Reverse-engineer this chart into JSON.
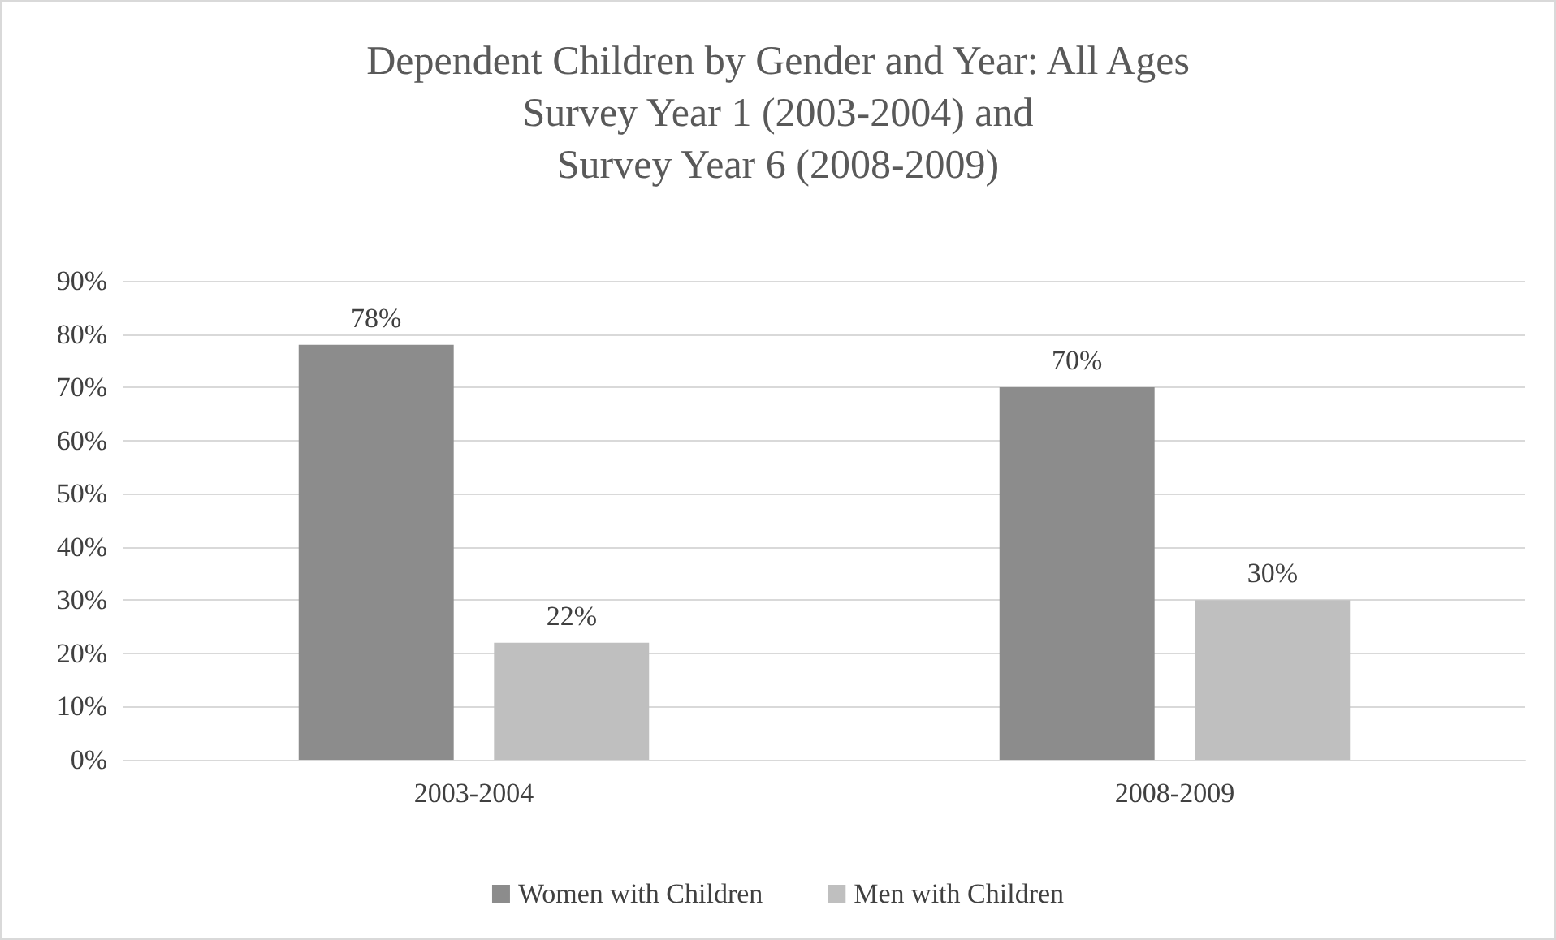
{
  "chart_data": {
    "type": "bar",
    "title": "Dependent Children by Gender and Year: All Ages\nSurvey Year 1 (2003-2004) and\nSurvey Year 6 (2008-2009)",
    "categories": [
      "2003-2004",
      "2008-2009"
    ],
    "series": [
      {
        "name": "Women with Children",
        "color": "#8c8c8c",
        "values": [
          78,
          70
        ],
        "value_labels": [
          "78%",
          "70%"
        ]
      },
      {
        "name": "Men with Children",
        "color": "#bfbfbf",
        "values": [
          22,
          30
        ],
        "value_labels": [
          "22%",
          "30%"
        ]
      }
    ],
    "ylim": [
      0,
      90
    ],
    "yticks": [
      {
        "value": 0,
        "label": "0%"
      },
      {
        "value": 10,
        "label": "10%"
      },
      {
        "value": 20,
        "label": "20%"
      },
      {
        "value": 30,
        "label": "30%"
      },
      {
        "value": 40,
        "label": "40%"
      },
      {
        "value": 50,
        "label": "50%"
      },
      {
        "value": 60,
        "label": "60%"
      },
      {
        "value": 70,
        "label": "70%"
      },
      {
        "value": 80,
        "label": "80%"
      },
      {
        "value": 90,
        "label": "90%"
      }
    ],
    "grid": "y",
    "legend": "bottom"
  }
}
